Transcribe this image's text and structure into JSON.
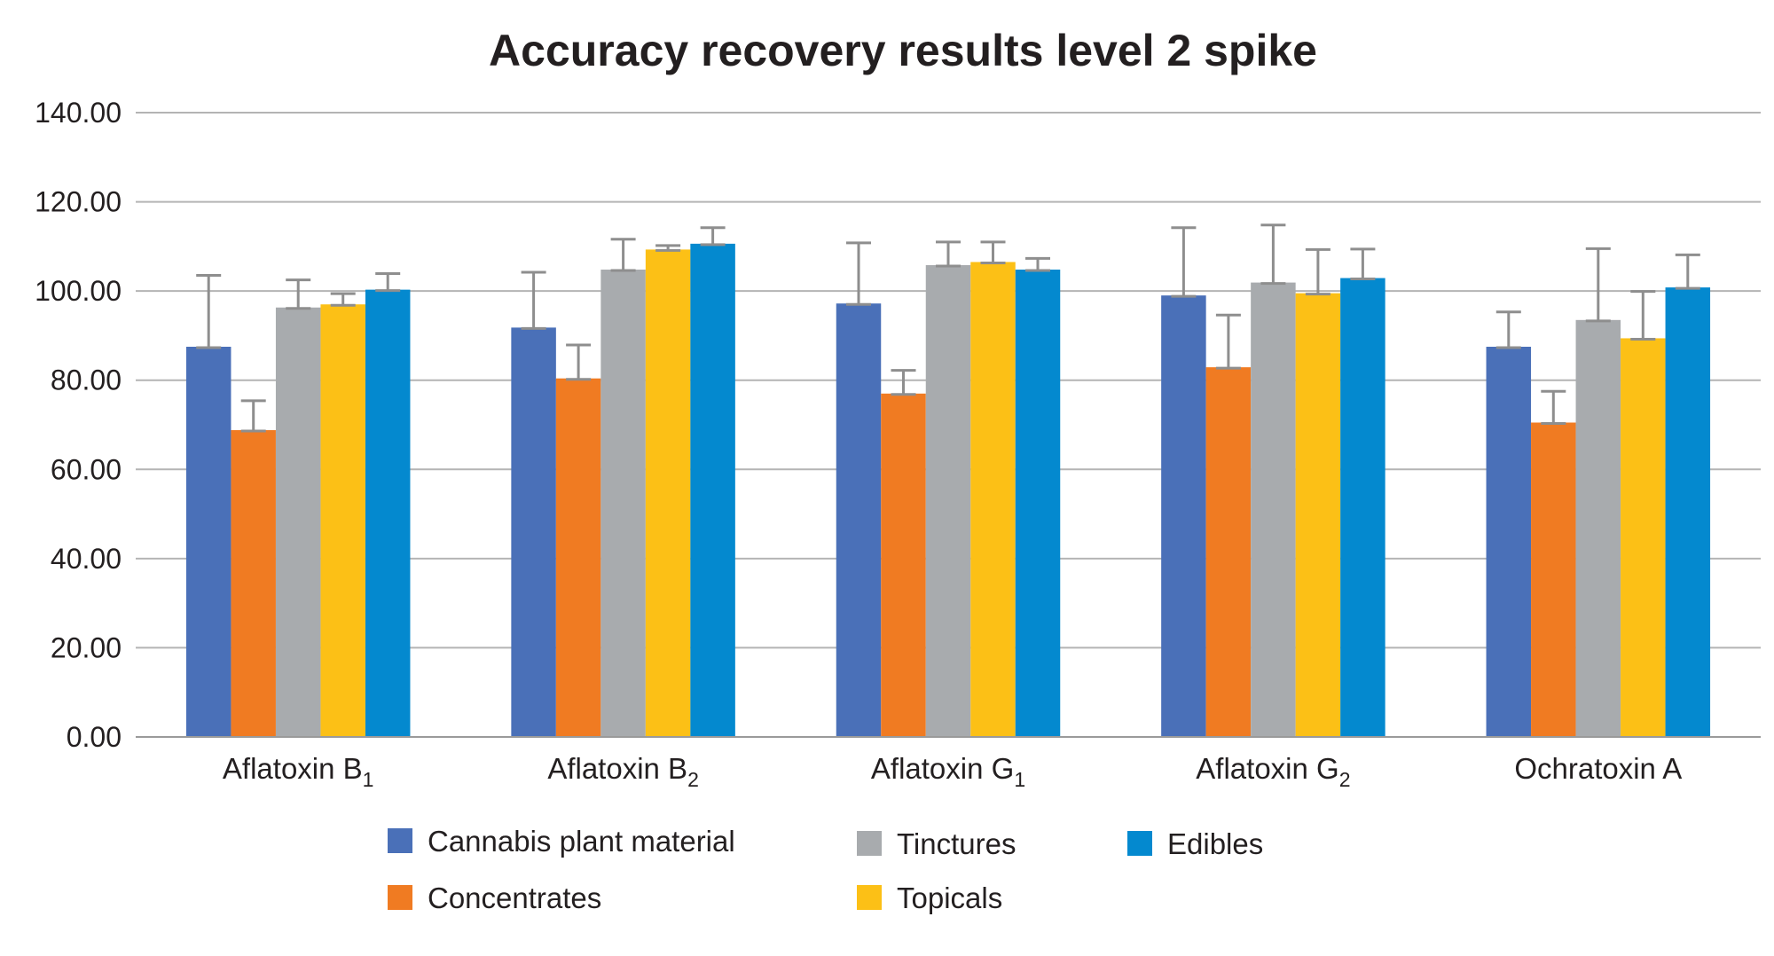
{
  "chart_data": {
    "type": "bar",
    "title": "Accuracy recovery results level 2 spike",
    "xlabel": "",
    "ylabel": "",
    "ylim": [
      0,
      140
    ],
    "yticks": [
      "0.00",
      "20.00",
      "40.00",
      "60.00",
      "80.00",
      "100.00",
      "120.00",
      "140.00"
    ],
    "grid": true,
    "legend_position": "bottom",
    "categories": [
      {
        "base": "Aflatoxin B",
        "sub": "1"
      },
      {
        "base": "Aflatoxin B",
        "sub": "2"
      },
      {
        "base": "Aflatoxin G",
        "sub": "1"
      },
      {
        "base": "Aflatoxin G",
        "sub": "2"
      },
      {
        "base": "Ochratoxin A",
        "sub": ""
      }
    ],
    "series": [
      {
        "name": "Cannabis plant material",
        "color": "#4a70b8",
        "values": [
          87.5,
          91.8,
          97.2,
          99.0,
          87.5
        ],
        "errors": [
          16.0,
          12.4,
          13.6,
          15.2,
          7.8
        ]
      },
      {
        "name": "Concentrates",
        "color": "#f07b22",
        "values": [
          68.8,
          80.4,
          77.0,
          82.9,
          70.5
        ],
        "errors": [
          6.6,
          7.5,
          5.2,
          11.7,
          7.0
        ]
      },
      {
        "name": "Tinctures",
        "color": "#a8abae",
        "values": [
          96.3,
          104.8,
          105.8,
          101.9,
          93.5
        ],
        "errors": [
          6.2,
          6.8,
          5.2,
          12.9,
          16.0
        ]
      },
      {
        "name": "Topicals",
        "color": "#fcc016",
        "values": [
          97.0,
          109.3,
          106.5,
          99.5,
          89.4
        ],
        "errors": [
          2.4,
          0.9,
          4.5,
          9.8,
          10.5
        ]
      },
      {
        "name": "Edibles",
        "color": "#0489cf",
        "values": [
          100.3,
          110.6,
          104.8,
          102.9,
          100.8
        ],
        "errors": [
          3.6,
          3.6,
          2.5,
          6.5,
          7.3
        ]
      }
    ]
  }
}
